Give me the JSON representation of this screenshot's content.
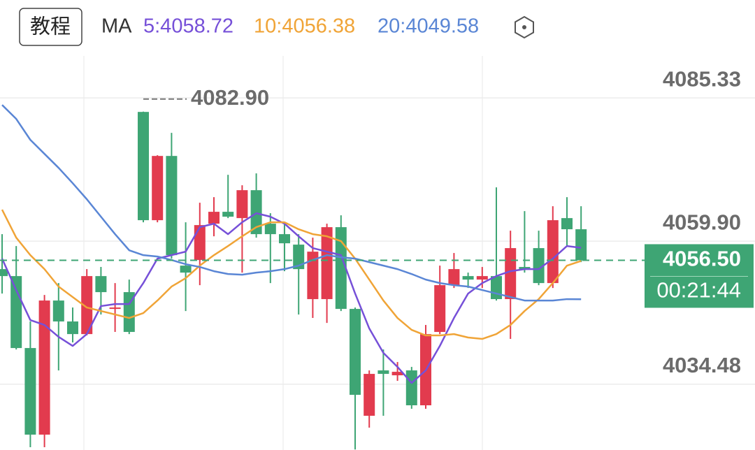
{
  "chart_data": {
    "type": "candlestick",
    "tutorial_button": "教程",
    "indicator_label": "MA",
    "ylim": [
      4022.8,
      4092.8
    ],
    "yticks": [
      4034.48,
      {
        "value": 4059.9,
        "label": "4059.90"
      },
      4085.33
    ],
    "grid": true,
    "up_color": "#e23b4e",
    "down_color": "#3ea574",
    "open": [
      4054.93,
      4053.69,
      4040.91,
      4025.53,
      4049.35,
      4045.63,
      4043.39,
      4053.69,
      4047.86,
      4050.84,
      4082.85,
      4063.62,
      4075.03,
      4055.55,
      4056.55,
      4063.0,
      4065.11,
      4063.99,
      4068.95,
      4063.0,
      4061.14,
      4059.28,
      4049.6,
      4049.6,
      4062.38,
      4047.86,
      4028.88,
      4036.94,
      4036.07,
      4036.94,
      4030.74,
      4043.77,
      4052.08,
      4053.69,
      4053.07,
      4053.69,
      4049.6,
      4055.31,
      4058.66,
      4052.45,
      4063.99,
      4062.01
    ],
    "high": [
      4061.14,
      4059.03,
      4045.63,
      4050.34,
      4052.45,
      4048.11,
      4054.93,
      4055.31,
      4052.45,
      4053.07,
      4082.9,
      4075.16,
      4079.13,
      4063.25,
      4066.72,
      4067.71,
      4071.68,
      4069.82,
      4071.93,
      4064.86,
      4063.25,
      4061.14,
      4060.52,
      4063.0,
      4064.49,
      4048.11,
      4036.94,
      4040.66,
      4038.43,
      4037.56,
      4045.01,
      4055.55,
      4057.79,
      4054.31,
      4055.31,
      4069.45,
      4061.76,
      4065.23,
      4061.76,
      4066.1,
      4067.71,
      4066.1
    ],
    "low": [
      4050.59,
      4040.66,
      4023.3,
      4023.3,
      4036.94,
      4041.91,
      4043.15,
      4046.87,
      4043.77,
      4043.39,
      4063.25,
      4063.25,
      4056.79,
      4047.49,
      4052.08,
      4060.76,
      4063.99,
      4054.31,
      4060.52,
      4052.45,
      4054.56,
      4046.87,
      4046.25,
      4045.38,
      4047.49,
      4022.9,
      4026.77,
      4028.88,
      4035.08,
      4030.12,
      4030.12,
      4043.39,
      4051.58,
      4051.58,
      4051.58,
      4049.35,
      4042.53,
      4054.31,
      4052.08,
      4051.58,
      4059.03,
      4056.17
    ],
    "close": [
      4053.69,
      4040.91,
      4025.53,
      4049.35,
      4045.63,
      4043.39,
      4053.69,
      4050.84,
      4048.11,
      4043.77,
      4063.62,
      4075.03,
      4057.41,
      4054.31,
      4062.75,
      4065.11,
      4064.24,
      4068.95,
      4061.14,
      4061.14,
      4059.52,
      4054.93,
      4058.03,
      4062.38,
      4047.86,
      4032.6,
      4036.32,
      4036.32,
      4036.69,
      4030.74,
      4043.39,
      4052.08,
      4054.93,
      4053.07,
      4053.69,
      4049.6,
      4058.66,
      4054.93,
      4052.45,
      4063.62,
      4062.01,
      4056.5
    ],
    "series": [
      {
        "name": "5:4058.72",
        "color": "#7650d8",
        "values": [
          4056.79,
          4051.21,
          4045.88,
          4045.01,
          4042.9,
          4041.29,
          4043.39,
          4048.36,
          4048.73,
          4048.73,
          4052.45,
          4056.79,
          4057.41,
          4058.03,
          4062.38,
          4063.0,
          4061.14,
          4063.25,
          4064.86,
          4064.24,
          4063.0,
          4060.76,
          4058.66,
          4058.03,
          4057.41,
          4050.59,
          4044.39,
          4040.05,
          4037.56,
          4034.71,
          4036.94,
          4041.29,
          4046.25,
          4050.59,
          4052.45,
          4053.69,
          4054.56,
          4054.93,
          4054.93,
          4056.79,
          4059.03,
          4058.72
        ]
      },
      {
        "name": "10:4056.38",
        "color": "#f0a437",
        "values": [
          4065.48,
          4060.52,
          4057.41,
          4054.93,
          4051.83,
          4049.97,
          4048.11,
          4047.49,
          4046.87,
          4046.25,
          4047.12,
          4049.35,
          4051.83,
          4053.32,
          4055.55,
          4057.41,
          4059.03,
          4060.76,
          4062.38,
          4063.25,
          4063.25,
          4062.01,
          4061.14,
          4060.76,
          4059.9,
          4056.79,
          4053.07,
          4049.35,
          4046.25,
          4044.14,
          4043.15,
          4043.15,
          4043.39,
          4042.78,
          4042.53,
          4043.39,
          4045.01,
          4047.49,
          4049.6,
          4052.45,
          4055.55,
          4056.38
        ]
      },
      {
        "name": "20:4049.58",
        "color": "#5a86d5",
        "values": [
          4084.09,
          4081.61,
          4077.89,
          4075.4,
          4072.92,
          4070.19,
          4067.34,
          4064.24,
          4061.14,
          4058.28,
          4057.41,
          4057.17,
          4056.55,
          4055.8,
          4055.31,
          4054.56,
          4054.06,
          4053.94,
          4054.31,
          4054.56,
          4054.93,
          4055.55,
          4056.55,
          4057.41,
          4057.04,
          4056.79,
          4056.17,
          4055.55,
          4054.93,
          4054.06,
          4053.07,
          4052.45,
          4052.08,
          4051.83,
          4051.21,
          4050.59,
          4049.97,
          4049.35,
          4049.35,
          4049.35,
          4049.6,
          4049.58
        ]
      }
    ],
    "max_marker": {
      "value": 4082.9,
      "label": "4082.90"
    },
    "last_price": {
      "value": 4056.5,
      "label": "4056.50"
    },
    "countdown": "00:21:44"
  }
}
